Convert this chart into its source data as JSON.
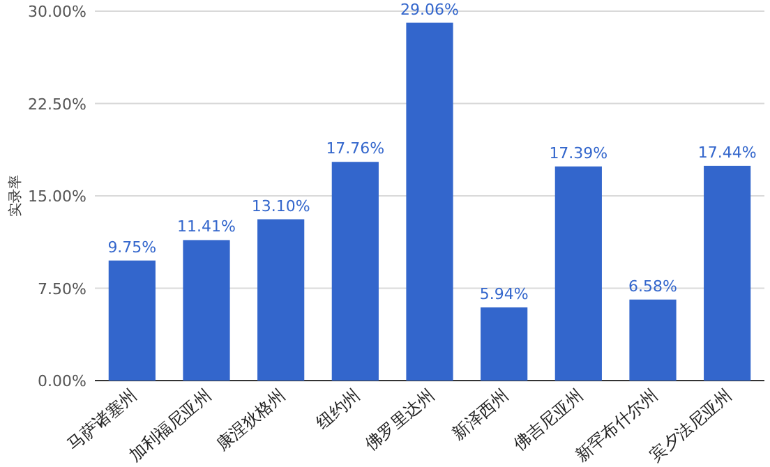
{
  "chart_data": {
    "type": "bar",
    "ylabel": "实录率",
    "categories": [
      "马萨诸塞州",
      "加利福尼亚州",
      "康涅狄格州",
      "纽约州",
      "佛罗里达州",
      "新泽西州",
      "佛吉尼亚州",
      "新罕布什尔州",
      "宾夕法尼亚州"
    ],
    "values": [
      9.75,
      11.41,
      13.1,
      17.76,
      29.06,
      5.94,
      17.39,
      6.58,
      17.44
    ],
    "value_labels": [
      "9.75%",
      "11.41%",
      "13.10%",
      "17.76%",
      "29.06%",
      "5.94%",
      "17.39%",
      "6.58%",
      "17.44%"
    ],
    "color": "#3366cc",
    "ylim": [
      0,
      30
    ],
    "yticks": [
      {
        "value": 0,
        "label": "0.00%"
      },
      {
        "value": 7.5,
        "label": "7.50%"
      },
      {
        "value": 15,
        "label": "15.00%"
      },
      {
        "value": 22.5,
        "label": "22.50%"
      },
      {
        "value": 30,
        "label": "30.00%"
      }
    ],
    "grid": "y"
  }
}
